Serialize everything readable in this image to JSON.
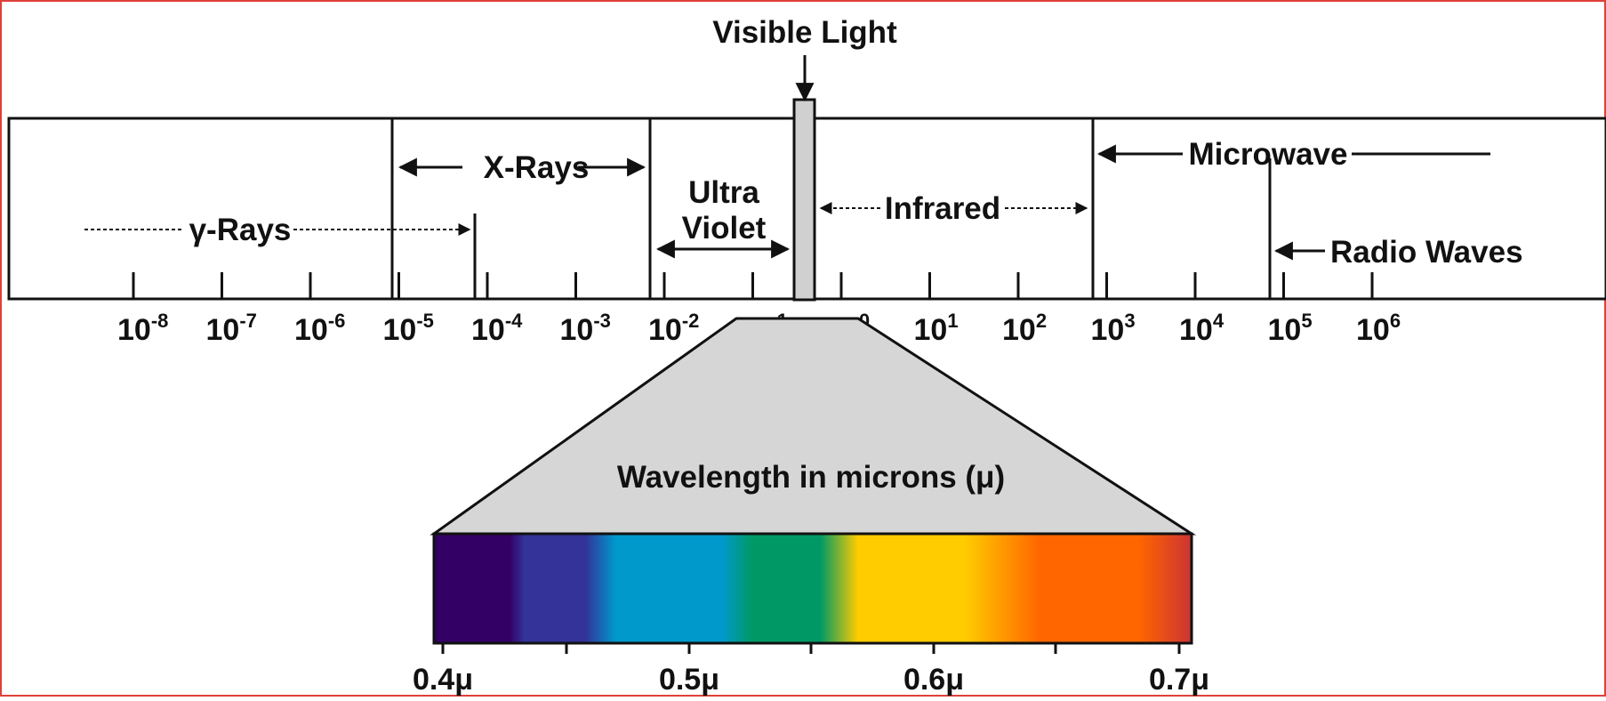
{
  "visible_light_label": "Visible Light",
  "regions": {
    "gamma": "γ-Rays",
    "xray": "X-Rays",
    "uv_line1": "Ultra",
    "uv_line2": "Violet",
    "infrared": "Infrared",
    "microwave": "Microwave",
    "radio": "Radio Waves"
  },
  "scale_ticks": [
    {
      "base": "10",
      "exp": "-8"
    },
    {
      "base": "10",
      "exp": "-7"
    },
    {
      "base": "10",
      "exp": "-6"
    },
    {
      "base": "10",
      "exp": "-5"
    },
    {
      "base": "10",
      "exp": "-4"
    },
    {
      "base": "10",
      "exp": "-3"
    },
    {
      "base": "10",
      "exp": "-2"
    },
    {
      "base": "10",
      "exp": "-1"
    },
    {
      "base": "10",
      "exp": "0"
    },
    {
      "base": "10",
      "exp": "1"
    },
    {
      "base": "10",
      "exp": "2"
    },
    {
      "base": "10",
      "exp": "3"
    },
    {
      "base": "10",
      "exp": "4"
    },
    {
      "base": "10",
      "exp": "5"
    },
    {
      "base": "10",
      "exp": "6"
    }
  ],
  "zoom_title": "Wavelength in microns (μ)",
  "spectrum_ticks": [
    "0.4μ",
    "0.5μ",
    "0.6μ",
    "0.7μ"
  ],
  "colors": {
    "border": "#e0403a",
    "band_violet": "#330066",
    "band_indigo": "#333399",
    "band_blue": "#0099cc",
    "band_green": "#009966",
    "band_yellow": "#ffcc00",
    "band_orange": "#ff6600",
    "band_red": "#cc3333",
    "zoom_fill": "#d6d6d6"
  }
}
